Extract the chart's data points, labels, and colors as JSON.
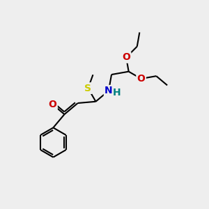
{
  "bg_color": "#eeeeee",
  "atom_colors": {
    "C": "#000000",
    "N": "#0000cc",
    "O": "#cc0000",
    "S": "#cccc00",
    "H": "#008080"
  },
  "bond_color": "#000000",
  "bond_lw": 1.5,
  "figsize": [
    3.0,
    3.0
  ],
  "dpi": 100,
  "xlim": [
    0,
    10
  ],
  "ylim": [
    0,
    10
  ]
}
